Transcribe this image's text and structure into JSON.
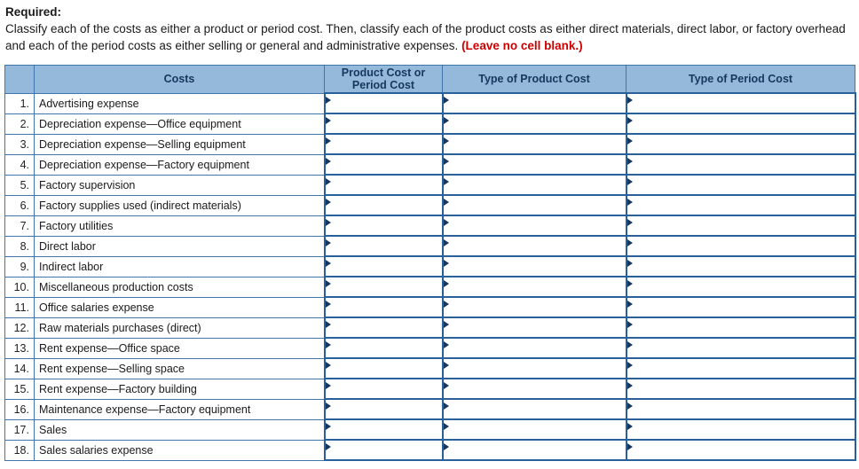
{
  "instructions": {
    "heading": "Required:",
    "body": "Classify each of the costs as either a product or period cost. Then, classify each of the product costs as either direct materials, direct labor, or factory overhead and each of the period costs as either selling or general and administrative expenses. ",
    "emphasis": "(Leave no cell blank.)"
  },
  "table": {
    "headers": [
      "Costs",
      "Product Cost or Period Cost",
      "Type of Product Cost",
      "Type of Period Cost"
    ],
    "rows": [
      {
        "num": "1.",
        "cost": "Advertising expense"
      },
      {
        "num": "2.",
        "cost": "Depreciation expense—Office equipment"
      },
      {
        "num": "3.",
        "cost": "Depreciation expense—Selling equipment"
      },
      {
        "num": "4.",
        "cost": "Depreciation expense—Factory equipment"
      },
      {
        "num": "5.",
        "cost": "Factory supervision"
      },
      {
        "num": "6.",
        "cost": "Factory supplies used (indirect materials)"
      },
      {
        "num": "7.",
        "cost": "Factory utilities"
      },
      {
        "num": "8.",
        "cost": "Direct labor"
      },
      {
        "num": "9.",
        "cost": "Indirect labor"
      },
      {
        "num": "10.",
        "cost": "Miscellaneous production costs"
      },
      {
        "num": "11.",
        "cost": "Office salaries expense"
      },
      {
        "num": "12.",
        "cost": "Raw materials purchases (direct)"
      },
      {
        "num": "13.",
        "cost": "Rent expense—Office space"
      },
      {
        "num": "14.",
        "cost": "Rent expense—Selling space"
      },
      {
        "num": "15.",
        "cost": "Rent expense—Factory building"
      },
      {
        "num": "16.",
        "cost": "Maintenance expense—Factory equipment"
      },
      {
        "num": "17.",
        "cost": "Sales"
      },
      {
        "num": "18.",
        "cost": "Sales salaries expense"
      }
    ],
    "answer_cell_value": ""
  },
  "colors": {
    "header_bg": "#95b9db",
    "grid_border": "#3f76ad",
    "answer_border": "#2a6099",
    "header_text": "#17375e",
    "emphasis_red": "#cc0000"
  }
}
